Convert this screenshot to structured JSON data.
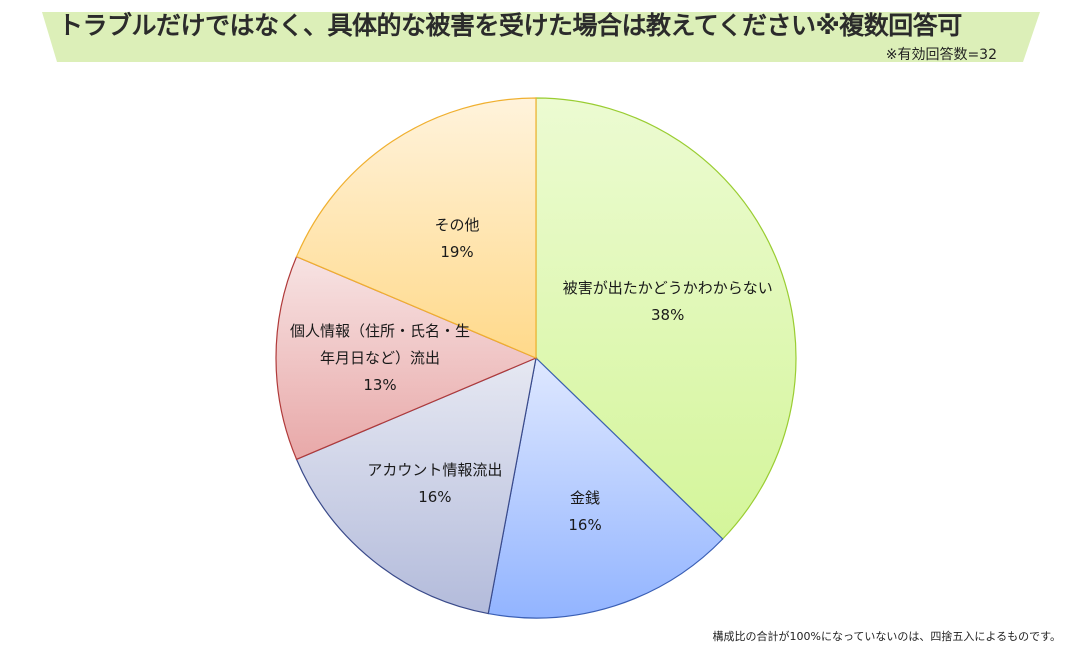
{
  "header": {
    "title": "トラブルだけではなく、具体的な被害を受けた場合は教えてください※複数回答可",
    "subtitle": "※有効回答数=32"
  },
  "chart_data": {
    "type": "pie",
    "title": "トラブルだけではなく、具体的な被害を受けた場合は教えてください※複数回答可",
    "note": "※有効回答数=32",
    "start": "12 o'clock, clockwise",
    "slices": [
      {
        "label": "被害が出たかどうかわからない",
        "label_lines": [
          "被害が出たかどうかわからない"
        ],
        "value": 38,
        "value_label": "38%",
        "color_top": "#ecfbd2",
        "color_bottom": "#d4f59a",
        "border": "#9acd32"
      },
      {
        "label": "金銭",
        "label_lines": [
          "金銭"
        ],
        "value": 16,
        "value_label": "16%",
        "color_top": "#dfe8ff",
        "color_bottom": "#92b4ff",
        "border": "#3a5fb5"
      },
      {
        "label": "アカウント情報流出",
        "label_lines": [
          "アカウント情報流出"
        ],
        "value": 16,
        "value_label": "16%",
        "color_top": "#e6e8f2",
        "color_bottom": "#b3bbdb",
        "border": "#3a4a8a"
      },
      {
        "label": "個人情報（住所・氏名・生年月日など）流出",
        "label_lines": [
          "個人情報（住所・氏名・生",
          "年月日など）流出"
        ],
        "value": 13,
        "value_label": "13%",
        "color_top": "#f7e3e3",
        "color_bottom": "#e8a8a8",
        "border": "#b03a3a"
      },
      {
        "label": "その他",
        "label_lines": [
          "その他"
        ],
        "value": 19,
        "value_label": "19%",
        "color_top": "#fff3dc",
        "color_bottom": "#ffd98a",
        "border": "#f0b030"
      }
    ]
  },
  "footnote": "構成比の合計が100%になっていないのは、四捨五入によるものです。"
}
